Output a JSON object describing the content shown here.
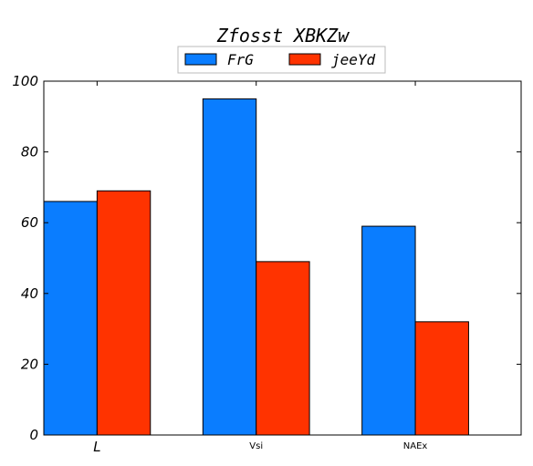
{
  "chart_data": {
    "type": "bar",
    "title": "Zfosst XBKZw",
    "xlabel": "",
    "ylabel": "",
    "categories": [
      "L",
      "Vsi",
      "NAEx"
    ],
    "series": [
      {
        "name": "FrG",
        "color": "#0a7dff",
        "values": [
          66,
          95,
          59
        ]
      },
      {
        "name": "jeeYd",
        "color": "#ff3300",
        "values": [
          69,
          49,
          32
        ]
      }
    ],
    "ylim": [
      0,
      100
    ],
    "yticks": [
      0,
      20,
      40,
      60,
      80,
      100
    ],
    "grid": false,
    "legend_position": "top-center"
  }
}
